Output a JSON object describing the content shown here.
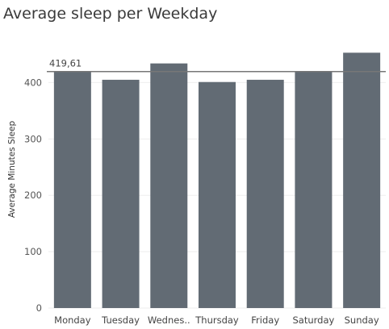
{
  "chart_data": {
    "type": "bar",
    "title": "Average sleep per Weekday",
    "ylabel": "Average Minutes Sleep",
    "xlabel": "",
    "categories": [
      "Monday",
      "Tuesday",
      "Wednes..",
      "Thursday",
      "Friday",
      "Saturday",
      "Sunday"
    ],
    "values": [
      420,
      405,
      434,
      401,
      405,
      419,
      453
    ],
    "ylim": [
      0,
      475
    ],
    "yticks": [
      "0",
      "100",
      "200",
      "300",
      "400"
    ],
    "reference_line": {
      "value": 419.61,
      "label": "419,61"
    },
    "grid": true,
    "colors": {
      "bar": "#626b74",
      "reference_line": "#777777",
      "grid": "#eeeeee"
    }
  }
}
